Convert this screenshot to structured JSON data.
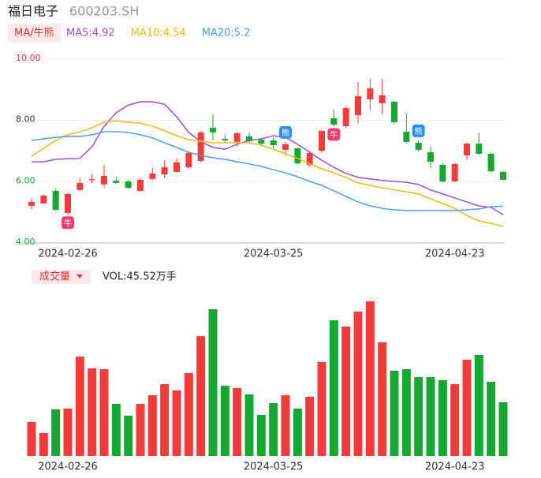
{
  "chart_data": [
    {
      "type": "candlestick",
      "title": "福日电子",
      "subtitle": "600203.SH",
      "button": "MA/牛熊",
      "categories": [
        null,
        null,
        null,
        "2024-02-26",
        null,
        null,
        null,
        null,
        null,
        null,
        null,
        null,
        null,
        null,
        null,
        null,
        null,
        null,
        null,
        null,
        "2024-03-25",
        null,
        null,
        null,
        null,
        null,
        null,
        null,
        null,
        null,
        null,
        null,
        null,
        null,
        null,
        "2024-04-23",
        null,
        null,
        null,
        null
      ],
      "open": [
        5.21,
        5.29,
        5.7,
        4.98,
        5.73,
        6.05,
        5.91,
        6.03,
        6.01,
        5.7,
        6.09,
        6.24,
        6.32,
        6.47,
        6.68,
        7.76,
        7.4,
        7.3,
        7.48,
        7.37,
        7.35,
        7.04,
        7.09,
        6.55,
        7.01,
        8.07,
        7.81,
        8.17,
        8.69,
        8.56,
        8.61,
        7.63,
        7.27,
        6.96,
        6.55,
        6.01,
        6.86,
        7.24,
        6.91,
        6.32
      ],
      "high": [
        5.45,
        5.58,
        5.78,
        5.62,
        6.12,
        6.25,
        6.55,
        6.15,
        6.05,
        6.1,
        6.45,
        6.7,
        6.75,
        7.0,
        7.65,
        8.2,
        7.55,
        7.62,
        7.6,
        7.42,
        7.45,
        7.3,
        7.12,
        7.0,
        7.68,
        8.35,
        8.45,
        9.25,
        9.35,
        9.35,
        8.65,
        8.25,
        7.35,
        7.15,
        6.6,
        6.6,
        7.28,
        7.6,
        6.95,
        6.35
      ],
      "low": [
        5.1,
        5.27,
        5.05,
        4.92,
        5.7,
        5.95,
        5.8,
        5.92,
        5.76,
        5.68,
        6.05,
        6.12,
        6.3,
        6.42,
        6.62,
        7.35,
        7.3,
        7.15,
        7.25,
        7.18,
        7.05,
        6.85,
        6.55,
        6.5,
        6.95,
        7.8,
        7.75,
        7.9,
        8.35,
        8.2,
        7.9,
        7.25,
        6.98,
        6.45,
        5.98,
        6.0,
        6.7,
        6.88,
        6.3,
        6.05
      ],
      "close": [
        5.34,
        5.55,
        5.08,
        5.6,
        5.96,
        6.08,
        6.19,
        5.96,
        5.8,
        6.06,
        6.27,
        6.47,
        6.63,
        6.94,
        7.61,
        7.61,
        7.35,
        7.58,
        7.32,
        7.24,
        7.19,
        7.22,
        6.6,
        6.94,
        7.66,
        7.86,
        8.4,
        8.79,
        9.05,
        8.82,
        7.94,
        7.3,
        7.04,
        6.65,
        6.01,
        6.58,
        7.24,
        6.91,
        6.34,
        6.06
      ],
      "up_color": "#f23c3c",
      "down_color": "#16a832",
      "series": [
        {
          "name": "MA5:4.92",
          "color": "#9b4ddf",
          "values": [
            6.65,
            6.65,
            6.73,
            6.75,
            6.76,
            7.14,
            7.81,
            8.25,
            8.5,
            8.61,
            8.61,
            8.53,
            8.12,
            7.61,
            7.3,
            7.12,
            7.06,
            7.22,
            7.35,
            7.4,
            7.5,
            7.45,
            7.22,
            6.96,
            6.7,
            6.47,
            6.27,
            6.14,
            6.09,
            6.04,
            6.01,
            5.98,
            5.91,
            5.73,
            5.6,
            5.47,
            5.34,
            5.21,
            5.16,
            4.92
          ]
        },
        {
          "name": "MA10:4.54",
          "color": "#f2b90f",
          "values": [
            6.83,
            7.09,
            7.35,
            7.53,
            7.63,
            7.76,
            7.94,
            7.99,
            7.94,
            7.91,
            7.81,
            7.66,
            7.5,
            7.37,
            7.32,
            7.27,
            7.27,
            7.27,
            7.27,
            7.19,
            7.06,
            6.91,
            6.76,
            6.58,
            6.42,
            6.29,
            6.14,
            5.96,
            5.88,
            5.8,
            5.73,
            5.67,
            5.6,
            5.44,
            5.29,
            5.13,
            4.9,
            4.72,
            4.64,
            4.54
          ]
        },
        {
          "name": "MA20:5.2",
          "color": "#4a9ef0",
          "values": [
            7.35,
            7.4,
            7.45,
            7.48,
            7.48,
            7.53,
            7.63,
            7.63,
            7.61,
            7.53,
            7.43,
            7.27,
            7.12,
            6.96,
            6.86,
            6.78,
            6.73,
            6.65,
            6.58,
            6.5,
            6.39,
            6.29,
            6.16,
            6.01,
            5.88,
            5.7,
            5.52,
            5.34,
            5.21,
            5.13,
            5.08,
            5.06,
            5.06,
            5.06,
            5.06,
            5.06,
            5.08,
            5.11,
            5.18,
            5.2
          ]
        }
      ],
      "signals": [
        {
          "index": 3,
          "label": "牛"
        },
        {
          "index": 21,
          "label": "熊"
        },
        {
          "index": 25,
          "label": "牛"
        },
        {
          "index": 32,
          "label": "熊"
        }
      ],
      "ylim": [
        4,
        10
      ],
      "yticks": [
        {
          "value": 10,
          "label": "10.00",
          "color": "#e33"
        },
        {
          "value": 8,
          "label": "8.00",
          "color": "#333"
        },
        {
          "value": 6,
          "label": "6.00",
          "color": "#16a832"
        },
        {
          "value": 4,
          "label": "4.00",
          "color": "#16a832"
        }
      ],
      "grid": true
    },
    {
      "type": "bar",
      "button": "成交量",
      "volume_label": "VOL:45.52万手",
      "values": [
        28.8,
        19.4,
        39.5,
        40.2,
        84.3,
        74.3,
        73.6,
        44.2,
        34.1,
        44.2,
        51.5,
        60.9,
        55.6,
        70.3,
        101.7,
        124.5,
        59.6,
        57.6,
        52.2,
        34.8,
        44.8,
        51.5,
        40.2,
        50.2,
        79.7,
        115.1,
        109.8,
        122.5,
        131.2,
        96.4,
        72.3,
        73.6,
        66.9,
        66.9,
        64.3,
        60.9,
        81.7,
        85.7,
        62.9,
        45.52
      ]
    }
  ]
}
